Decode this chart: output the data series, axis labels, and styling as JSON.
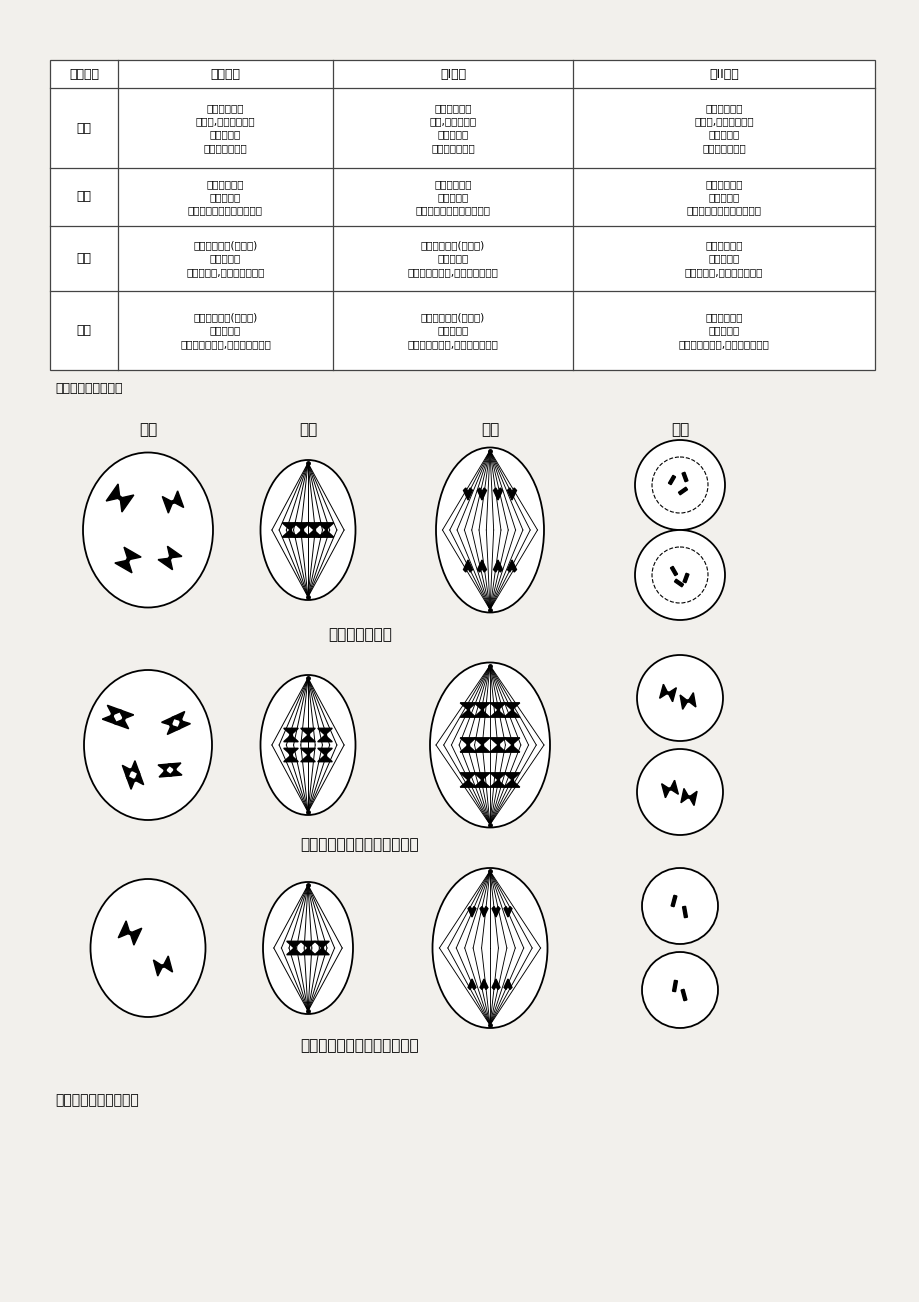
{
  "bg_color": "#ffffff",
  "page_bg": "#f2f0ec",
  "table_header": [
    "分裂时期",
    "有丝分裂",
    "减I分裂",
    "减II分裂"
  ],
  "row_headers": [
    "前期",
    "中期",
    "后期",
    "末期"
  ],
  "cells": [
    [
      "有同源染色体\n无联会,不形成四分体\n有染色单体\n染色体随机分布",
      "有同源染色体\n联会,形成四分体\n有染色单体\n四分体随机分布",
      "无同源染色体\n无联会,不形成四分体\n有染色单体\n染色体随机分布"
    ],
    [
      "有同源染色体\n有染色单体\n染色体在赤道板上排成一行",
      "有同源染色体\n有染色单体\n染色体在赤道板处排成两行",
      "无同源染色体\n有染色单体\n染色体在赤道板上排成一行"
    ],
    [
      "有同源染色体(着一极)\n无染色单体\n着丝粒分裂,染色体移向两极",
      "有同源染色体(二极间)\n有染色单体\n同源染色体分离,染色体移向两极",
      "无同源染色体\n无染色单体\n着丝粒分裂,染色体移向两极"
    ],
    [
      "有同源染色体(着一极)\n无染色单体\n染色体均分两极,在每极随机分布",
      "有同源染色体(二极间)\n有染色单体\n染色体均分两极,在每极随机分布",
      "无同源染色体\n无染色单体\n染色体均分两极,在每极随机分布"
    ]
  ],
  "caption": "各时期的图像如下图",
  "phase_labels": [
    "前期",
    "中期",
    "后期",
    "末期"
  ],
  "division_labels": [
    "有　丝　分　裂",
    "减　数　第　一　次　分　裂",
    "减　数　第　二　次　分　裂"
  ],
  "bottom_text": "三、细化图像判断方法"
}
